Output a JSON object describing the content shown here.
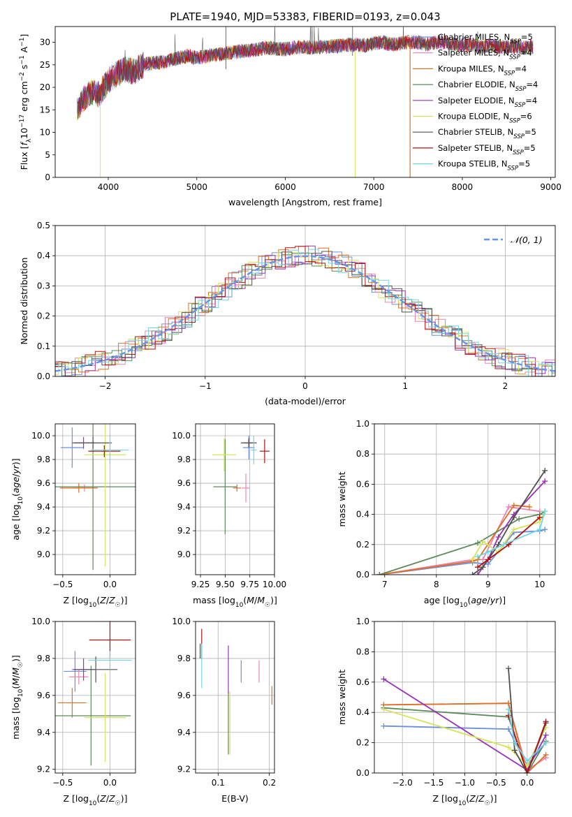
{
  "title": "PLATE=1940, MJD=53383, FIBERID=0193, z=0.043",
  "colors": {
    "Chabrier MILES": "#6b8fdc",
    "Salpeter MILES": "#ee82b4",
    "Kroupa MILES": "#e07020",
    "Chabrier ELODIE": "#5a8a5a",
    "Salpeter ELODIE": "#9b30b8",
    "Kroupa ELODIE": "#d7e45a",
    "Chabrier STELIB": "#505050",
    "Salpeter STELIB": "#b01010",
    "Kroupa STELIB": "#70d6e6",
    "normal": "#6495ed"
  },
  "chart_data": [
    {
      "id": "spectrum",
      "type": "line",
      "xlabel": "wavelength [Angstrom, rest frame]",
      "ylabel_html": "Flux [f_λ10^-17 erg cm^-2 s^-1 A^-1]",
      "xlim": [
        3400,
        9050
      ],
      "ylim": [
        0,
        33.5
      ],
      "xticks": [
        4000,
        5000,
        6000,
        7000,
        8000,
        9000
      ],
      "yticks": [
        0,
        5,
        10,
        15,
        20,
        25,
        30
      ],
      "x": [
        3650,
        3700,
        3800,
        3900,
        4000,
        4100,
        4200,
        4300,
        4400,
        4500,
        4600,
        4700,
        4800,
        4900,
        5000,
        5100,
        5200,
        5300,
        5400,
        5500,
        5600,
        5700,
        5800,
        5900,
        6000,
        6100,
        6200,
        6300,
        6400,
        6500,
        6600,
        6700,
        6800,
        6900,
        7000,
        7100,
        7200,
        7300,
        7400,
        7500,
        7600,
        7700,
        7800,
        7900,
        8000,
        8100,
        8200,
        8300,
        8400,
        8500,
        8600,
        8700,
        8800
      ],
      "continuum": [
        15,
        17,
        19,
        18.5,
        21.5,
        23,
        24,
        23.5,
        25,
        25.5,
        25.5,
        26,
        26.5,
        27,
        26.5,
        26.8,
        27.2,
        27.5,
        27.8,
        28,
        28.2,
        28.5,
        28.8,
        28.5,
        28.5,
        28.8,
        29,
        28.8,
        29,
        29,
        29.2,
        29.5,
        29.5,
        29.3,
        29.8,
        30,
        29.5,
        29.8,
        30,
        30,
        29.5,
        30,
        30,
        29.5,
        29.5,
        29.5,
        29,
        29.3,
        29,
        29,
        29,
        28.8,
        29
      ],
      "series": [
        {
          "name": "Chabrier MILES, N_SSP=5",
          "label": "Chabrier MILES, N",
          "sub": "SSP",
          "suffix": "=5"
        },
        {
          "name": "Salpeter MILES, N_SSP=4",
          "label": "Salpeter MILES, N",
          "sub": "SSP",
          "suffix": "=4"
        },
        {
          "name": "Kroupa MILES, N_SSP=4",
          "label": "Kroupa MILES, N",
          "sub": "SSP",
          "suffix": "=4"
        },
        {
          "name": "Chabrier ELODIE, N_SSP=4",
          "label": "Chabrier ELODIE, N",
          "sub": "SSP",
          "suffix": "=4"
        },
        {
          "name": "Salpeter ELODIE, N_SSP=4",
          "label": "Salpeter ELODIE, N",
          "sub": "SSP",
          "suffix": "=4"
        },
        {
          "name": "Kroupa ELODIE, N_SSP=6",
          "label": "Kroupa ELODIE, N",
          "sub": "SSP",
          "suffix": "=6"
        },
        {
          "name": "Chabrier STELIB, N_SSP=5",
          "label": "Chabrier STELIB, N",
          "sub": "SSP",
          "suffix": "=5"
        },
        {
          "name": "Salpeter STELIB, N_SSP=5",
          "label": "Salpeter STELIB, N",
          "sub": "SSP",
          "suffix": "=5"
        },
        {
          "name": "Kroupa STELIB, N_SSP=5",
          "label": "Kroupa STELIB, N",
          "sub": "SSP",
          "suffix": "=5"
        }
      ]
    },
    {
      "id": "residuals",
      "type": "step",
      "xlabel": "(data-model)/error",
      "ylabel": "Normed distribution",
      "xlim": [
        -2.5,
        2.5
      ],
      "ylim": [
        0,
        0.5
      ],
      "xticks": [
        -2,
        -1,
        0,
        1,
        2
      ],
      "xticklabels": [
        "−2",
        "−1",
        "0",
        "1",
        "2"
      ],
      "yticks": [
        0.0,
        0.1,
        0.2,
        0.3,
        0.4,
        0.5
      ],
      "yticklabels": [
        "0.0",
        "0.1",
        "0.2",
        "0.3",
        "0.4",
        "0.5"
      ],
      "bin_width": 0.1,
      "normal_legend": "𝒩(0, 1)"
    },
    {
      "id": "age-vs-Z",
      "type": "scatter",
      "xlabel": "Z [log10(Z/Z☉)]",
      "ylabel": "age  [log10(age/yr)]",
      "xlim": [
        -0.58,
        0.27
      ],
      "ylim": [
        8.83,
        10.1
      ],
      "xticks": [
        -0.5,
        0.0
      ],
      "xticklabels": [
        "−0.5",
        "0.0"
      ],
      "yticks": [
        9.0,
        9.2,
        9.4,
        9.6,
        9.8,
        10.0
      ],
      "yticklabels": [
        "9.0",
        "9.2",
        "9.4",
        "9.6",
        "9.8",
        "10.0"
      ],
      "points": [
        {
          "s": 0,
          "x": -0.4,
          "y": 9.9,
          "xerr": 0.12,
          "yerr": 0.17
        },
        {
          "s": 1,
          "x": -0.27,
          "y": 9.56,
          "xerr": 0.12,
          "yerr": 0.03
        },
        {
          "s": 2,
          "x": -0.33,
          "y": 9.56,
          "xerr": 0.2,
          "yerr": 0.04
        },
        {
          "s": 3,
          "x": -0.18,
          "y": 9.57,
          "xerr": 0.45,
          "yerr": 0.7
        },
        {
          "s": 4,
          "x": -0.28,
          "y": 9.94,
          "xerr": 0.12,
          "yerr": 0.05
        },
        {
          "s": 5,
          "x": -0.05,
          "y": 9.84,
          "xerr": 0.22,
          "yerr": 0.94
        },
        {
          "s": 6,
          "x": -0.18,
          "y": 9.94,
          "xerr": 0.2,
          "yerr": 0.05
        },
        {
          "s": 7,
          "x": -0.06,
          "y": 9.87,
          "xerr": 0.17,
          "yerr": 0.05
        },
        {
          "s": 8,
          "x": 0.0,
          "y": 9.88,
          "xerr": 0.2,
          "yerr": 0.12
        }
      ]
    },
    {
      "id": "age-vs-mass",
      "type": "scatter",
      "xlabel": "mass [log10(M/M☉)]",
      "ylabel": "",
      "xlim": [
        9.2,
        10.0
      ],
      "ylim": [
        8.83,
        10.1
      ],
      "xticks": [
        9.25,
        9.5,
        9.75,
        10.0
      ],
      "xticklabels": [
        "9.25",
        "9.50",
        "9.75",
        "10.00"
      ],
      "yticks": [
        9.0,
        9.2,
        9.4,
        9.6,
        9.8,
        10.0
      ],
      "yticklabels": [
        "9.0",
        "9.2",
        "9.4",
        "9.6",
        "9.8",
        "10.0"
      ],
      "points": [
        {
          "s": 0,
          "x": 9.74,
          "y": 9.9,
          "xerr": 0.06,
          "yerr": 0.1
        },
        {
          "s": 1,
          "x": 9.71,
          "y": 9.56,
          "xerr": 0.04,
          "yerr": 0.12
        },
        {
          "s": 2,
          "x": 9.62,
          "y": 9.56,
          "xerr": 0.04,
          "yerr": 0.03
        },
        {
          "s": 3,
          "x": 9.5,
          "y": 9.57,
          "xerr": 0.12,
          "yerr": 0.4
        },
        {
          "s": 4,
          "x": 9.74,
          "y": 9.94,
          "xerr": 0.06,
          "yerr": 0.03
        },
        {
          "s": 5,
          "x": 9.49,
          "y": 9.84,
          "xerr": 0.12,
          "yerr": 0.14
        },
        {
          "s": 6,
          "x": 9.74,
          "y": 9.94,
          "xerr": 0.08,
          "yerr": 0.04
        },
        {
          "s": 7,
          "x": 9.9,
          "y": 9.87,
          "xerr": 0.05,
          "yerr": 0.1
        },
        {
          "s": 8,
          "x": 9.79,
          "y": 9.88,
          "xerr": 0.03,
          "yerr": 0.12
        }
      ]
    },
    {
      "id": "mass-weight-vs-age",
      "type": "line",
      "xlabel": "age  [log10(age/yr)]",
      "ylabel": "mass weight",
      "xlim": [
        6.8,
        10.3
      ],
      "ylim": [
        0,
        1.0
      ],
      "xticks": [
        7,
        8,
        9,
        10
      ],
      "xticklabels": [
        "7",
        "8",
        "9",
        "10"
      ],
      "yticks": [
        0.0,
        0.2,
        0.4,
        0.6,
        0.8,
        1.0
      ],
      "yticklabels": [
        "0.0",
        "0.2",
        "0.4",
        "0.6",
        "0.8",
        "1.0"
      ],
      "series": [
        {
          "s": 0,
          "x": [
            6.9,
            8.7,
            9.0,
            9.5,
            10.0,
            10.1
          ],
          "y": [
            0.0,
            0.08,
            0.07,
            0.28,
            0.29,
            0.3
          ]
        },
        {
          "s": 1,
          "x": [
            6.9,
            8.7,
            8.9,
            9.4,
            10.0
          ],
          "y": [
            0.0,
            0.1,
            0.1,
            0.45,
            0.42
          ]
        },
        {
          "s": 2,
          "x": [
            6.9,
            8.7,
            8.8,
            9.5,
            9.8
          ],
          "y": [
            0.0,
            0.09,
            0.1,
            0.46,
            0.45
          ]
        },
        {
          "s": 3,
          "x": [
            6.9,
            8.8,
            9.6,
            10.0,
            10.1
          ],
          "y": [
            0.0,
            0.21,
            0.37,
            0.4,
            0.42
          ]
        },
        {
          "s": 4,
          "x": [
            8.8,
            9.0,
            9.2,
            9.5,
            10.1
          ],
          "y": [
            0.0,
            0.1,
            0.25,
            0.4,
            0.62
          ]
        },
        {
          "s": 5,
          "x": [
            8.7,
            8.9,
            9.2,
            9.5,
            10.0,
            10.1
          ],
          "y": [
            0.1,
            0.22,
            0.15,
            0.3,
            0.35,
            0.42
          ]
        },
        {
          "s": 6,
          "x": [
            8.7,
            8.9,
            9.2,
            9.5,
            10.1
          ],
          "y": [
            0.0,
            0.05,
            0.2,
            0.38,
            0.69
          ]
        },
        {
          "s": 7,
          "x": [
            8.8,
            9.0,
            9.4,
            10.0
          ],
          "y": [
            0.05,
            0.1,
            0.2,
            0.38
          ]
        },
        {
          "s": 8,
          "x": [
            8.8,
            9.0,
            9.3,
            10.0,
            10.1
          ],
          "y": [
            0.12,
            0.15,
            0.2,
            0.3,
            0.42
          ]
        }
      ]
    },
    {
      "id": "mass-vs-Z",
      "type": "scatter",
      "xlabel": "Z [log10(Z/Z☉)]",
      "ylabel": "mass [log10(M/M☉)]",
      "xlim": [
        -0.58,
        0.27
      ],
      "ylim": [
        9.18,
        10.0
      ],
      "xticks": [
        -0.5,
        0.0
      ],
      "xticklabels": [
        "−0.5",
        "0.0"
      ],
      "yticks": [
        9.2,
        9.4,
        9.6,
        9.8,
        10.0
      ],
      "yticklabels": [
        "9.2",
        "9.4",
        "9.6",
        "9.8",
        "10.0"
      ],
      "points": [
        {
          "s": 0,
          "x": -0.37,
          "y": 9.73,
          "xerr": 0.12,
          "yerr": 0.11
        },
        {
          "s": 1,
          "x": -0.33,
          "y": 9.7,
          "xerr": 0.1,
          "yerr": 0.04
        },
        {
          "s": 2,
          "x": -0.4,
          "y": 9.56,
          "xerr": 0.15,
          "yerr": 0.08
        },
        {
          "s": 3,
          "x": -0.2,
          "y": 9.49,
          "xerr": 0.42,
          "yerr": 0.27
        },
        {
          "s": 4,
          "x": -0.28,
          "y": 9.74,
          "xerr": 0.12,
          "yerr": 0.06
        },
        {
          "s": 5,
          "x": -0.05,
          "y": 9.48,
          "xerr": 0.22,
          "yerr": 0.24
        },
        {
          "s": 6,
          "x": -0.15,
          "y": 9.74,
          "xerr": 0.23,
          "yerr": 0.07
        },
        {
          "s": 7,
          "x": 0.0,
          "y": 9.9,
          "xerr": 0.22,
          "yerr": 0.1
        },
        {
          "s": 8,
          "x": 0.0,
          "y": 9.79,
          "xerr": 0.23,
          "yerr": 0.05
        }
      ]
    },
    {
      "id": "mass-vs-EBV",
      "type": "scatter",
      "xlabel": "E(B-V)",
      "ylabel": "",
      "xlim": [
        0.056,
        0.21
      ],
      "ylim": [
        9.18,
        10.0
      ],
      "xticks": [
        0.1,
        0.2
      ],
      "xticklabels": [
        "0.1",
        "0.2"
      ],
      "yticks": [
        9.2,
        9.4,
        9.6,
        9.8,
        10.0
      ],
      "yticklabels": [
        "9.2",
        "9.4",
        "9.6",
        "9.8",
        "10.0"
      ],
      "points": [
        {
          "s": 0,
          "x": 0.145,
          "y": 9.73,
          "xerr": 0,
          "yerr": 0.06
        },
        {
          "s": 1,
          "x": 0.18,
          "y": 9.73,
          "xerr": 0,
          "yerr": 0.06
        },
        {
          "s": 2,
          "x": 0.205,
          "y": 9.6,
          "xerr": 0,
          "yerr": 0.05
        },
        {
          "s": 3,
          "x": 0.12,
          "y": 9.45,
          "xerr": 0,
          "yerr": 0.17
        },
        {
          "s": 4,
          "x": 0.12,
          "y": 9.74,
          "xerr": 0,
          "yerr": 0.13
        },
        {
          "s": 5,
          "x": 0.123,
          "y": 9.45,
          "xerr": 0,
          "yerr": 0.17
        },
        {
          "s": 6,
          "x": 0.065,
          "y": 9.84,
          "xerr": 0,
          "yerr": 0.04
        },
        {
          "s": 7,
          "x": 0.068,
          "y": 9.88,
          "xerr": 0,
          "yerr": 0.08
        },
        {
          "s": 8,
          "x": 0.068,
          "y": 9.76,
          "xerr": 0,
          "yerr": 0.12
        }
      ]
    },
    {
      "id": "mass-weight-vs-Z",
      "type": "line",
      "xlabel": "Z [log10(Z/Z☉)]",
      "ylabel": "mass weight",
      "xlim": [
        -2.45,
        0.45
      ],
      "ylim": [
        0,
        1.0
      ],
      "xticks": [
        -2.0,
        -1.5,
        -1.0,
        -0.5,
        0.0
      ],
      "xticklabels": [
        "−2.0",
        "−1.5",
        "−1.0",
        "−0.5",
        "0.0"
      ],
      "yticks": [
        0.0,
        0.2,
        0.4,
        0.6,
        0.8,
        1.0
      ],
      "yticklabels": [
        "0.0",
        "0.2",
        "0.4",
        "0.6",
        "0.8",
        "1.0"
      ],
      "series": [
        {
          "s": 0,
          "x": [
            -2.3,
            -0.3,
            0.0,
            0.3
          ],
          "y": [
            0.31,
            0.29,
            0.05,
            0.2
          ]
        },
        {
          "s": 1,
          "x": [
            -2.3,
            -0.3,
            0.0,
            0.3
          ],
          "y": [
            0.45,
            0.46,
            0.02,
            0.1
          ]
        },
        {
          "s": 2,
          "x": [
            -2.3,
            -0.3,
            0.0,
            0.3
          ],
          "y": [
            0.45,
            0.46,
            0.0,
            0.12
          ]
        },
        {
          "s": 3,
          "x": [
            -2.3,
            -0.3,
            0.0,
            0.3
          ],
          "y": [
            0.43,
            0.37,
            0.0,
            0.21
          ]
        },
        {
          "s": 4,
          "x": [
            -2.3,
            0.0,
            0.3
          ],
          "y": [
            0.62,
            0.02,
            0.25
          ]
        },
        {
          "s": 5,
          "x": [
            -2.3,
            -0.3,
            0.0,
            0.3
          ],
          "y": [
            0.42,
            0.17,
            0.05,
            0.3
          ]
        },
        {
          "s": 6,
          "x": [
            -0.3,
            -0.2,
            0.0,
            0.3
          ],
          "y": [
            0.69,
            0.15,
            0.0,
            0.33
          ]
        },
        {
          "s": 7,
          "x": [
            -0.3,
            0.0,
            0.3
          ],
          "y": [
            0.38,
            0.0,
            0.34
          ]
        },
        {
          "s": 8,
          "x": [
            -0.3,
            -0.2,
            0.0,
            0.3
          ],
          "y": [
            0.42,
            0.2,
            0.08,
            0.2
          ]
        }
      ]
    }
  ]
}
